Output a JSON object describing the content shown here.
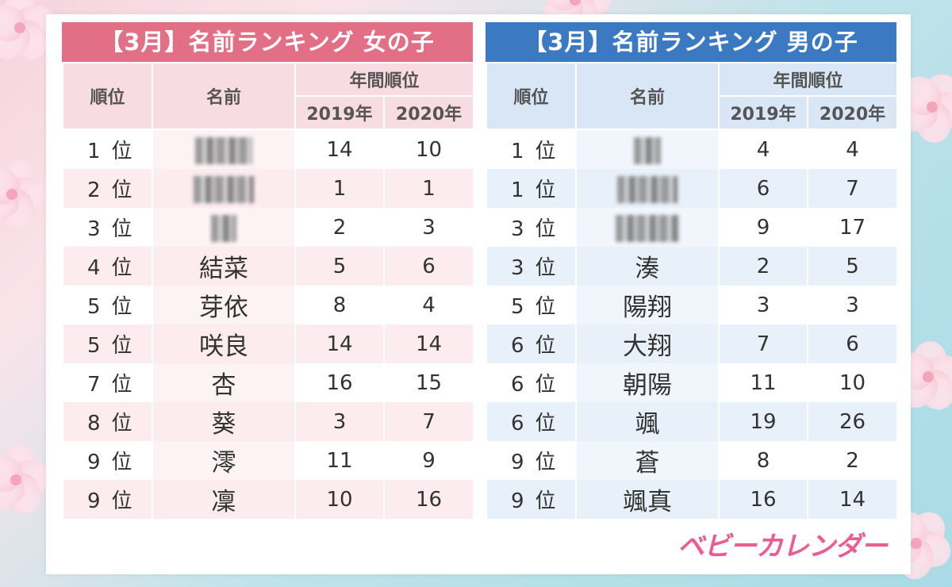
{
  "girls": {
    "title": "【3月】名前ランキング 女の子",
    "headers": {
      "rank": "順位",
      "name": "名前",
      "annual": "年間順位",
      "y2019": "2019年",
      "y2020": "2020年"
    },
    "rows": [
      {
        "rank": "1",
        "suffix": "位",
        "name": "",
        "y2019": "14",
        "y2020": "10"
      },
      {
        "rank": "2",
        "suffix": "位",
        "name": "",
        "y2019": "1",
        "y2020": "1"
      },
      {
        "rank": "3",
        "suffix": "位",
        "name": "",
        "y2019": "2",
        "y2020": "3"
      },
      {
        "rank": "4",
        "suffix": "位",
        "name": "結菜",
        "y2019": "5",
        "y2020": "6"
      },
      {
        "rank": "5",
        "suffix": "位",
        "name": "芽依",
        "y2019": "8",
        "y2020": "4"
      },
      {
        "rank": "5",
        "suffix": "位",
        "name": "咲良",
        "y2019": "14",
        "y2020": "14"
      },
      {
        "rank": "7",
        "suffix": "位",
        "name": "杏",
        "y2019": "16",
        "y2020": "15"
      },
      {
        "rank": "8",
        "suffix": "位",
        "name": "葵",
        "y2019": "3",
        "y2020": "7"
      },
      {
        "rank": "9",
        "suffix": "位",
        "name": "澪",
        "y2019": "11",
        "y2020": "9"
      },
      {
        "rank": "9",
        "suffix": "位",
        "name": "凜",
        "y2019": "10",
        "y2020": "16"
      }
    ]
  },
  "boys": {
    "title": "【3月】名前ランキング 男の子",
    "headers": {
      "rank": "順位",
      "name": "名前",
      "annual": "年間順位",
      "y2019": "2019年",
      "y2020": "2020年"
    },
    "rows": [
      {
        "rank": "1",
        "suffix": "位",
        "name": "",
        "y2019": "4",
        "y2020": "4"
      },
      {
        "rank": "1",
        "suffix": "位",
        "name": "",
        "y2019": "6",
        "y2020": "7"
      },
      {
        "rank": "3",
        "suffix": "位",
        "name": "",
        "y2019": "9",
        "y2020": "17"
      },
      {
        "rank": "3",
        "suffix": "位",
        "name": "湊",
        "y2019": "2",
        "y2020": "5"
      },
      {
        "rank": "5",
        "suffix": "位",
        "name": "陽翔",
        "y2019": "3",
        "y2020": "3"
      },
      {
        "rank": "6",
        "suffix": "位",
        "name": "大翔",
        "y2019": "7",
        "y2020": "6"
      },
      {
        "rank": "6",
        "suffix": "位",
        "name": "朝陽",
        "y2019": "11",
        "y2020": "10"
      },
      {
        "rank": "6",
        "suffix": "位",
        "name": "颯",
        "y2019": "19",
        "y2020": "26"
      },
      {
        "rank": "9",
        "suffix": "位",
        "name": "蒼",
        "y2019": "8",
        "y2020": "2"
      },
      {
        "rank": "9",
        "suffix": "位",
        "name": "颯真",
        "y2019": "16",
        "y2020": "14"
      }
    ]
  },
  "logo": "ベビーカレンダー",
  "colors": {
    "girls_accent": "#e36f87",
    "boys_accent": "#3b7ac3",
    "logo": "#ee5c8e"
  }
}
